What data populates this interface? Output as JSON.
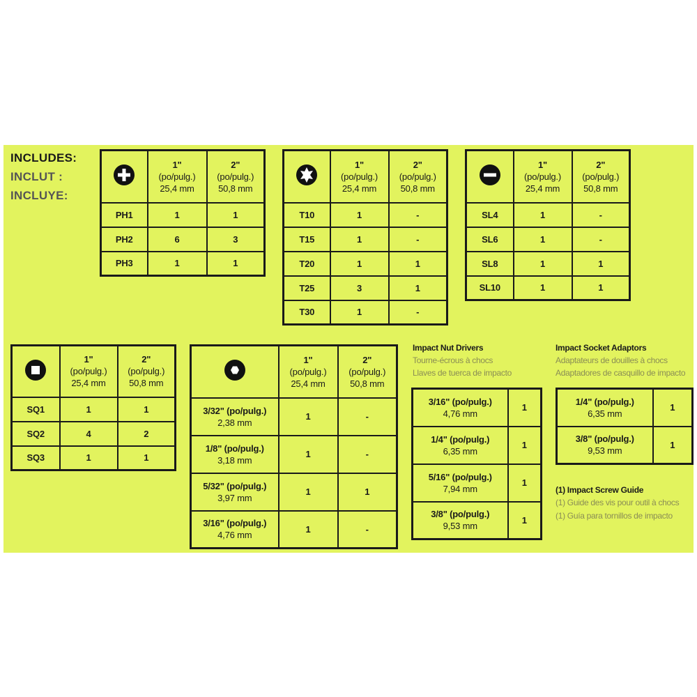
{
  "includes": [
    "INCLUDES:",
    "INCLUT :",
    "INCLUYE:"
  ],
  "drive_tables": [
    {
      "header": [
        [
          "1\"",
          "(po/pulg.)",
          "25,4 mm"
        ],
        [
          "2\"",
          "(po/pulg.)",
          "50,8 mm"
        ]
      ],
      "rows": [
        [
          "PH1",
          1,
          1
        ],
        [
          "PH2",
          6,
          3
        ],
        [
          "PH3",
          1,
          1
        ]
      ]
    },
    {
      "header": [
        [
          "1\"",
          "(po/pulg.)",
          "25,4 mm"
        ],
        [
          "2\"",
          "(po/pulg.)",
          "50,8 mm"
        ]
      ],
      "rows": [
        [
          "T10",
          1,
          "-"
        ],
        [
          "T15",
          1,
          "-"
        ],
        [
          "T20",
          1,
          1
        ],
        [
          "T25",
          3,
          1
        ],
        [
          "T30",
          1,
          "-"
        ]
      ]
    },
    {
      "header": [
        [
          "1\"",
          "(po/pulg.)",
          "25,4 mm"
        ],
        [
          "2\"",
          "(po/pulg.)",
          "50,8 mm"
        ]
      ],
      "rows": [
        [
          "SL4",
          1,
          "-"
        ],
        [
          "SL6",
          1,
          "-"
        ],
        [
          "SL8",
          1,
          1
        ],
        [
          "SL10",
          1,
          1
        ]
      ]
    },
    {
      "header": [
        [
          "1\"",
          "(po/pulg.)",
          "25,4 mm"
        ],
        [
          "2\"",
          "(po/pulg.)",
          "50,8 mm"
        ]
      ],
      "rows": [
        [
          "SQ1",
          1,
          1
        ],
        [
          "SQ2",
          4,
          2
        ],
        [
          "SQ3",
          1,
          1
        ]
      ]
    },
    {
      "header": [
        [
          "1\"",
          "(po/pulg.)",
          "25,4 mm"
        ],
        [
          "2\"",
          "(po/pulg.)",
          "50,8 mm"
        ]
      ],
      "rows": [
        [
          [
            "3/32\" (po/pulg.)",
            "2,38 mm"
          ],
          1,
          "-"
        ],
        [
          [
            "1/8\" (po/pulg.)",
            "3,18 mm"
          ],
          1,
          "-"
        ],
        [
          [
            "5/32\" (po/pulg.)",
            "3,97 mm"
          ],
          1,
          1
        ],
        [
          [
            "3/16\" (po/pulg.)",
            "4,76 mm"
          ],
          1,
          "-"
        ]
      ]
    }
  ],
  "nut_drivers": {
    "title": "Impact Nut Drivers",
    "subtitles": [
      "Tourne-écrous à chocs",
      "Llaves de tuerca de impacto"
    ],
    "rows": [
      [
        [
          "3/16\" (po/pulg.)",
          "4,76 mm"
        ],
        1
      ],
      [
        [
          "1/4\" (po/pulg.)",
          "6,35 mm"
        ],
        1
      ],
      [
        [
          "5/16\" (po/pulg.)",
          "7,94 mm"
        ],
        1
      ],
      [
        [
          "3/8\" (po/pulg.)",
          "9,53 mm"
        ],
        1
      ]
    ]
  },
  "socket_adaptors": {
    "title": "Impact Socket Adaptors",
    "subtitles": [
      "Adaptateurs de douilles à chocs",
      "Adaptadores de casquillo de impacto"
    ],
    "rows": [
      [
        [
          "1/4\" (po/pulg.)",
          "6,35 mm"
        ],
        1
      ],
      [
        [
          "3/8\" (po/pulg.)",
          "9,53 mm"
        ],
        1
      ]
    ]
  },
  "screw_guide": [
    "(1) Impact Screw Guide",
    "(1) Guide des vis pour outil à chocs",
    "(1) Guía para tornillos de impacto"
  ]
}
